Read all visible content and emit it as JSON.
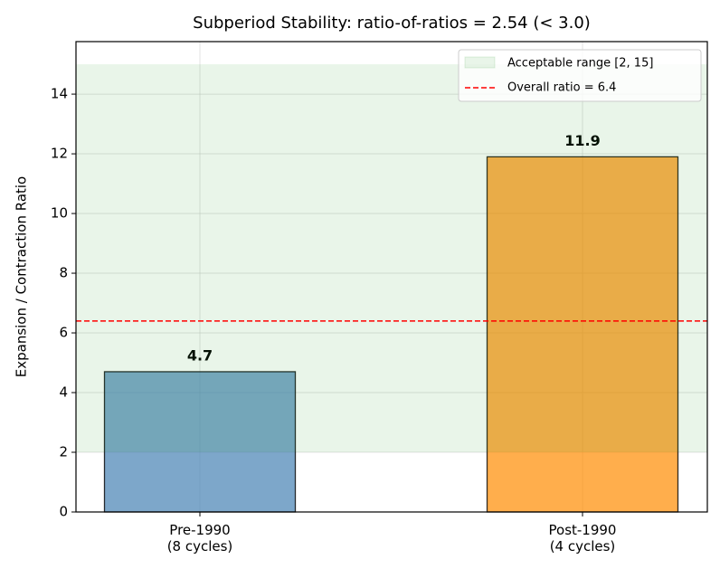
{
  "chart_data": {
    "type": "bar",
    "title": "Subperiod Stability: ratio-of-ratios = 2.54 (< 3.0)",
    "ylabel": "Expansion / Contraction Ratio",
    "categories": [
      "Pre-1990\n(8 cycles)",
      "Post-1990\n(4 cycles)"
    ],
    "values": [
      4.7,
      11.9
    ],
    "colors": [
      "#4682b4",
      "#ff8c00"
    ],
    "ylim": [
      0,
      15.76
    ],
    "yticks": [
      0,
      2,
      4,
      6,
      8,
      10,
      12,
      14
    ],
    "grid": true,
    "band": {
      "range": [
        2,
        15
      ],
      "label": "Acceptable range [2, 15]",
      "color": "#2ca02c"
    },
    "reference_line": {
      "value": 6.4,
      "label": "Overall ratio = 6.4",
      "color": "#ff0000"
    },
    "legend": "upper right"
  }
}
